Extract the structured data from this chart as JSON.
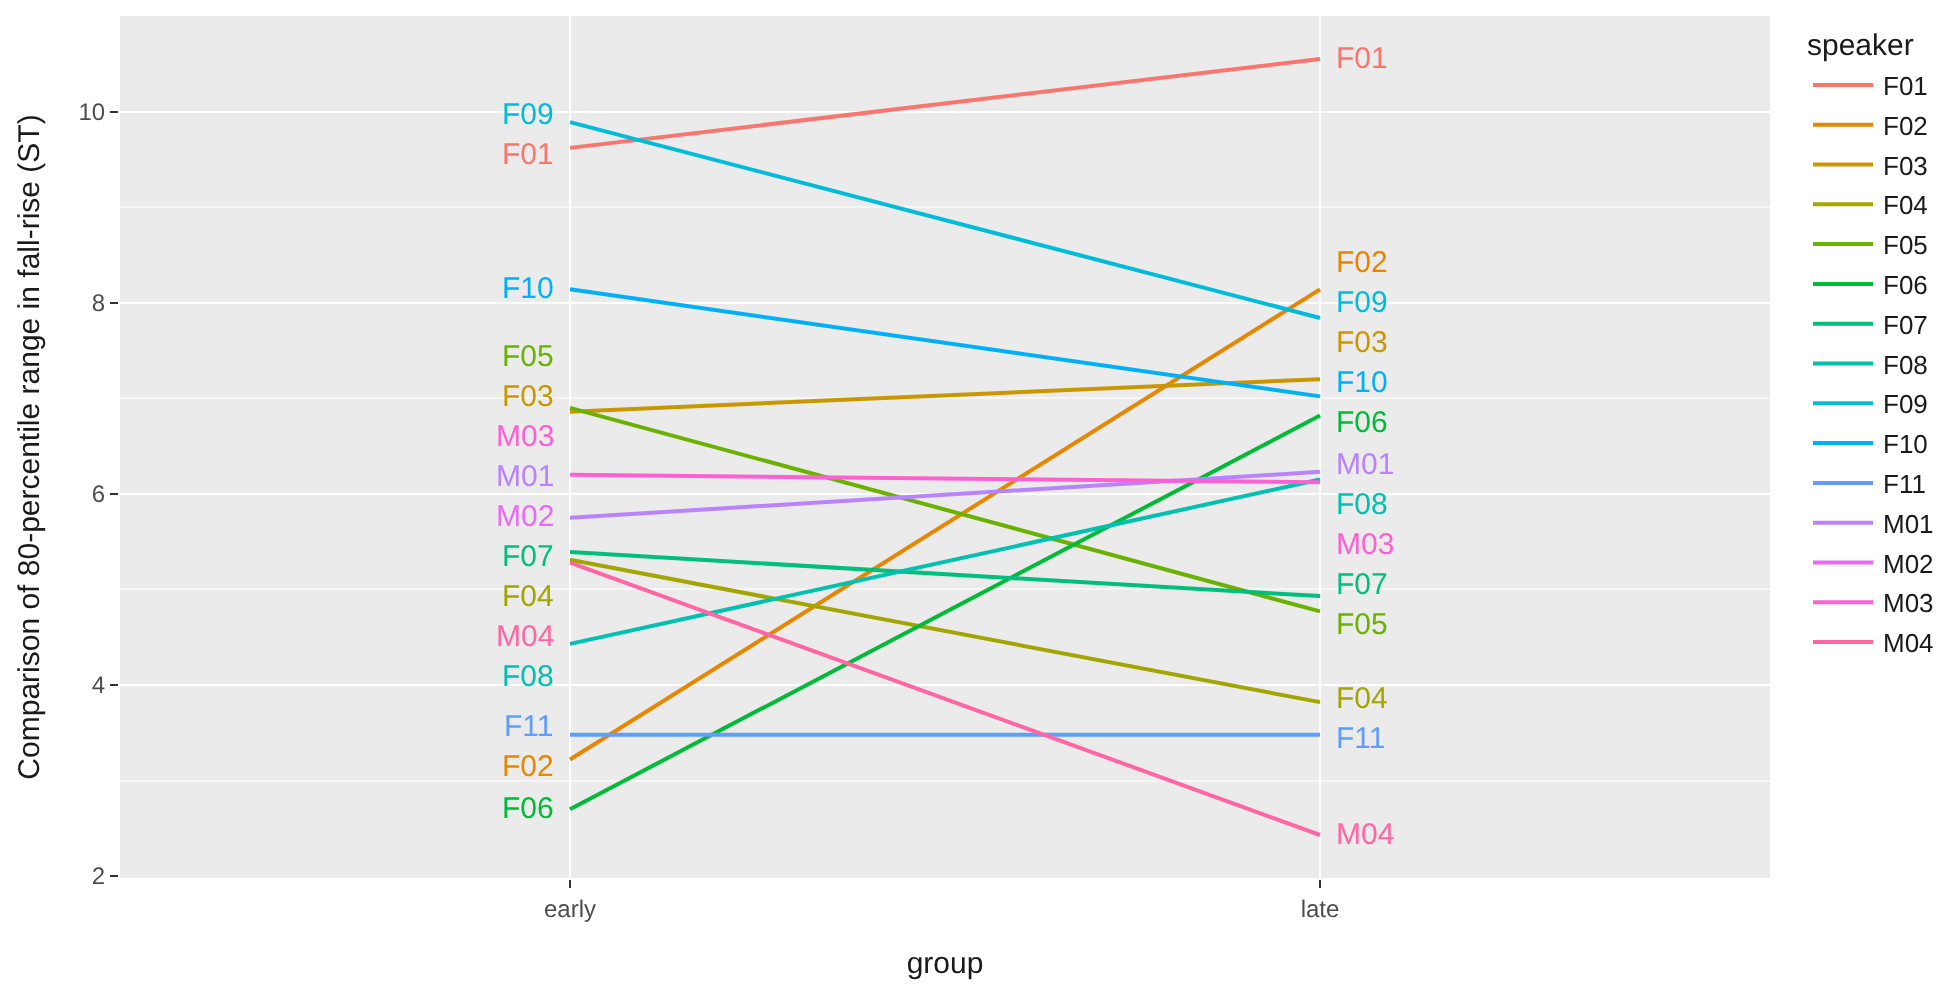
{
  "chart_data": {
    "type": "line",
    "xlabel": "group",
    "ylabel": "Comparison of 80-percentile range in fall-rise (ST)",
    "legend_title": "speaker",
    "categories": [
      "early",
      "late"
    ],
    "series": [
      {
        "name": "F01",
        "color": "#f8766d",
        "values": [
          9.62,
          10.55
        ]
      },
      {
        "name": "F02",
        "color": "#e58700",
        "values": [
          3.22,
          8.14
        ]
      },
      {
        "name": "F03",
        "color": "#c99800",
        "values": [
          6.86,
          7.2
        ]
      },
      {
        "name": "F04",
        "color": "#a3a500",
        "values": [
          5.31,
          3.82
        ]
      },
      {
        "name": "F05",
        "color": "#6bb100",
        "values": [
          6.9,
          4.77
        ]
      },
      {
        "name": "F06",
        "color": "#00ba38",
        "values": [
          2.7,
          6.82
        ]
      },
      {
        "name": "F07",
        "color": "#00bf7d",
        "values": [
          5.39,
          4.93
        ]
      },
      {
        "name": "F08",
        "color": "#00c0af",
        "values": [
          4.43,
          6.15
        ]
      },
      {
        "name": "F09",
        "color": "#00bcd8",
        "values": [
          9.89,
          7.84
        ]
      },
      {
        "name": "F10",
        "color": "#00b0f6",
        "values": [
          8.14,
          7.02
        ]
      },
      {
        "name": "F11",
        "color": "#619cff",
        "values": [
          3.48,
          3.48
        ]
      },
      {
        "name": "M01",
        "color": "#b983ff",
        "values": [
          5.75,
          6.23
        ]
      },
      {
        "name": "M02",
        "color": "#e76bf3",
        "values": [
          null,
          null
        ]
      },
      {
        "name": "M03",
        "color": "#fd61d1",
        "values": [
          6.2,
          6.12
        ]
      },
      {
        "name": "M04",
        "color": "#ff67a4",
        "values": [
          5.28,
          2.43
        ]
      }
    ],
    "annotations": [
      "M02"
    ],
    "ylim": [
      1.98,
      11.0
    ],
    "yticks": [
      2,
      4,
      6,
      8,
      10
    ],
    "grid": true,
    "legend": "right",
    "marker": "none",
    "line_style": "solid"
  }
}
